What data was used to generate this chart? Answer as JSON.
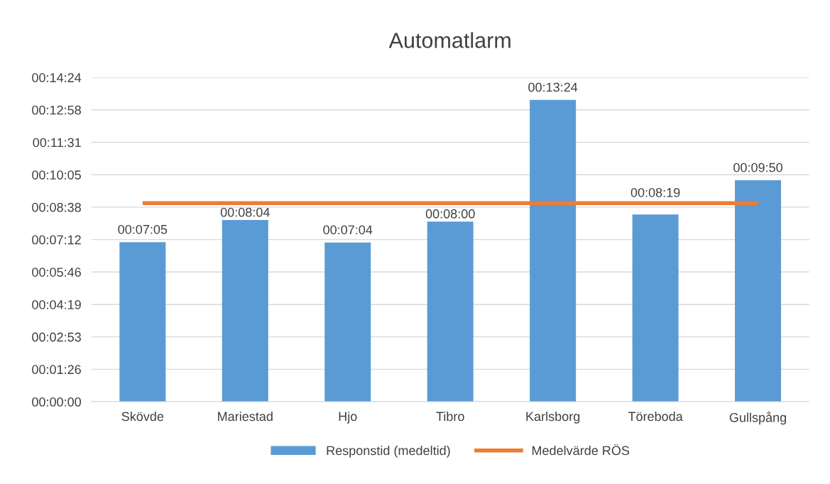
{
  "chart_data": {
    "type": "bar",
    "title": "Automatlarm",
    "categories": [
      "Skövde",
      "Mariestad",
      "Hjo",
      "Tibro",
      "Karlsborg",
      "Töreboda",
      "Gullspång"
    ],
    "series": [
      {
        "name": "Responstid (medeltid)",
        "type": "bar",
        "color": "#5b9bd5",
        "values": [
          425,
          484,
          424,
          480,
          804,
          499,
          590
        ],
        "value_labels": [
          "00:07:05",
          "00:08:04",
          "00:07:04",
          "00:08:00",
          "00:13:24",
          "00:08:19",
          "00:09:50"
        ]
      },
      {
        "name": "Medelvärde RÖS",
        "type": "line",
        "color": "#ed7d31",
        "values": [
          529,
          529,
          529,
          529,
          529,
          529,
          529
        ]
      }
    ],
    "ylim": [
      0,
      864
    ],
    "yticks": [
      {
        "value": 0,
        "label": "00:00:00"
      },
      {
        "value": 86.4,
        "label": "00:01:26"
      },
      {
        "value": 172.8,
        "label": "00:02:53"
      },
      {
        "value": 259.2,
        "label": "00:04:19"
      },
      {
        "value": 345.6,
        "label": "00:05:46"
      },
      {
        "value": 432,
        "label": "00:07:12"
      },
      {
        "value": 518.4,
        "label": "00:08:38"
      },
      {
        "value": 604.8,
        "label": "00:10:05"
      },
      {
        "value": 691.2,
        "label": "00:11:31"
      },
      {
        "value": 777.6,
        "label": "00:12:58"
      },
      {
        "value": 864,
        "label": "00:14:24"
      }
    ],
    "grid": "y",
    "legend": "bottom"
  }
}
